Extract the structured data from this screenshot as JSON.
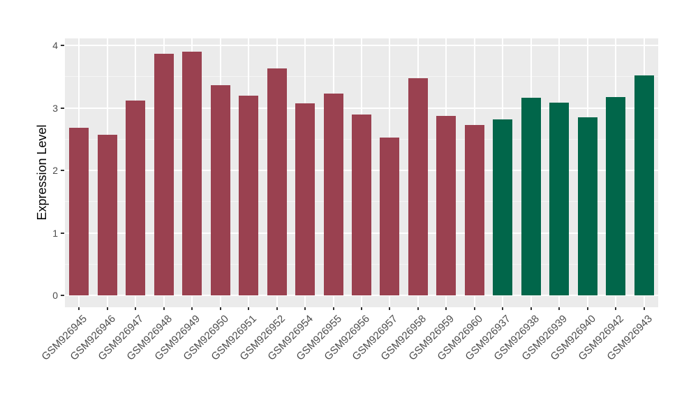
{
  "colors": {
    "page_bg": "#FFFFFF",
    "panel_bg": "#EBEBEB",
    "grid_major": "#FFFFFF",
    "grid_minor": "#F5F5F5",
    "tick_mark": "#333333",
    "axis_text": "#4D4D4D",
    "axis_title": "#000000",
    "bar_maroon": "#9A4150",
    "bar_green": "#01664A"
  },
  "chart_data": {
    "type": "bar",
    "title": "",
    "xlabel": "",
    "ylabel": "Expression Level",
    "ylim": [
      0,
      4.12
    ],
    "yticks": [
      0,
      1,
      2,
      3,
      4
    ],
    "minor_gridlines": [
      0.5,
      1.5,
      2.5,
      3.5
    ],
    "grid": true,
    "legend_position": "none",
    "categories": [
      "GSM926945",
      "GSM926946",
      "GSM926947",
      "GSM926948",
      "GSM926949",
      "GSM926950",
      "GSM926951",
      "GSM926952",
      "GSM926954",
      "GSM926955",
      "GSM926956",
      "GSM926957",
      "GSM926958",
      "GSM926959",
      "GSM926960",
      "GSM926937",
      "GSM926938",
      "GSM926939",
      "GSM926940",
      "GSM926942",
      "GSM926943"
    ],
    "values": [
      2.68,
      2.57,
      3.12,
      3.87,
      3.9,
      3.36,
      3.2,
      3.63,
      3.07,
      3.23,
      2.89,
      2.52,
      3.48,
      2.87,
      2.73,
      2.82,
      3.16,
      3.08,
      2.85,
      3.17,
      3.52
    ],
    "bar_groups": [
      "maroon",
      "maroon",
      "maroon",
      "maroon",
      "maroon",
      "maroon",
      "maroon",
      "maroon",
      "maroon",
      "maroon",
      "maroon",
      "maroon",
      "maroon",
      "maroon",
      "maroon",
      "green",
      "green",
      "green",
      "green",
      "green",
      "green"
    ],
    "group_colors": {
      "maroon": "#9A4150",
      "green": "#01664A"
    }
  }
}
